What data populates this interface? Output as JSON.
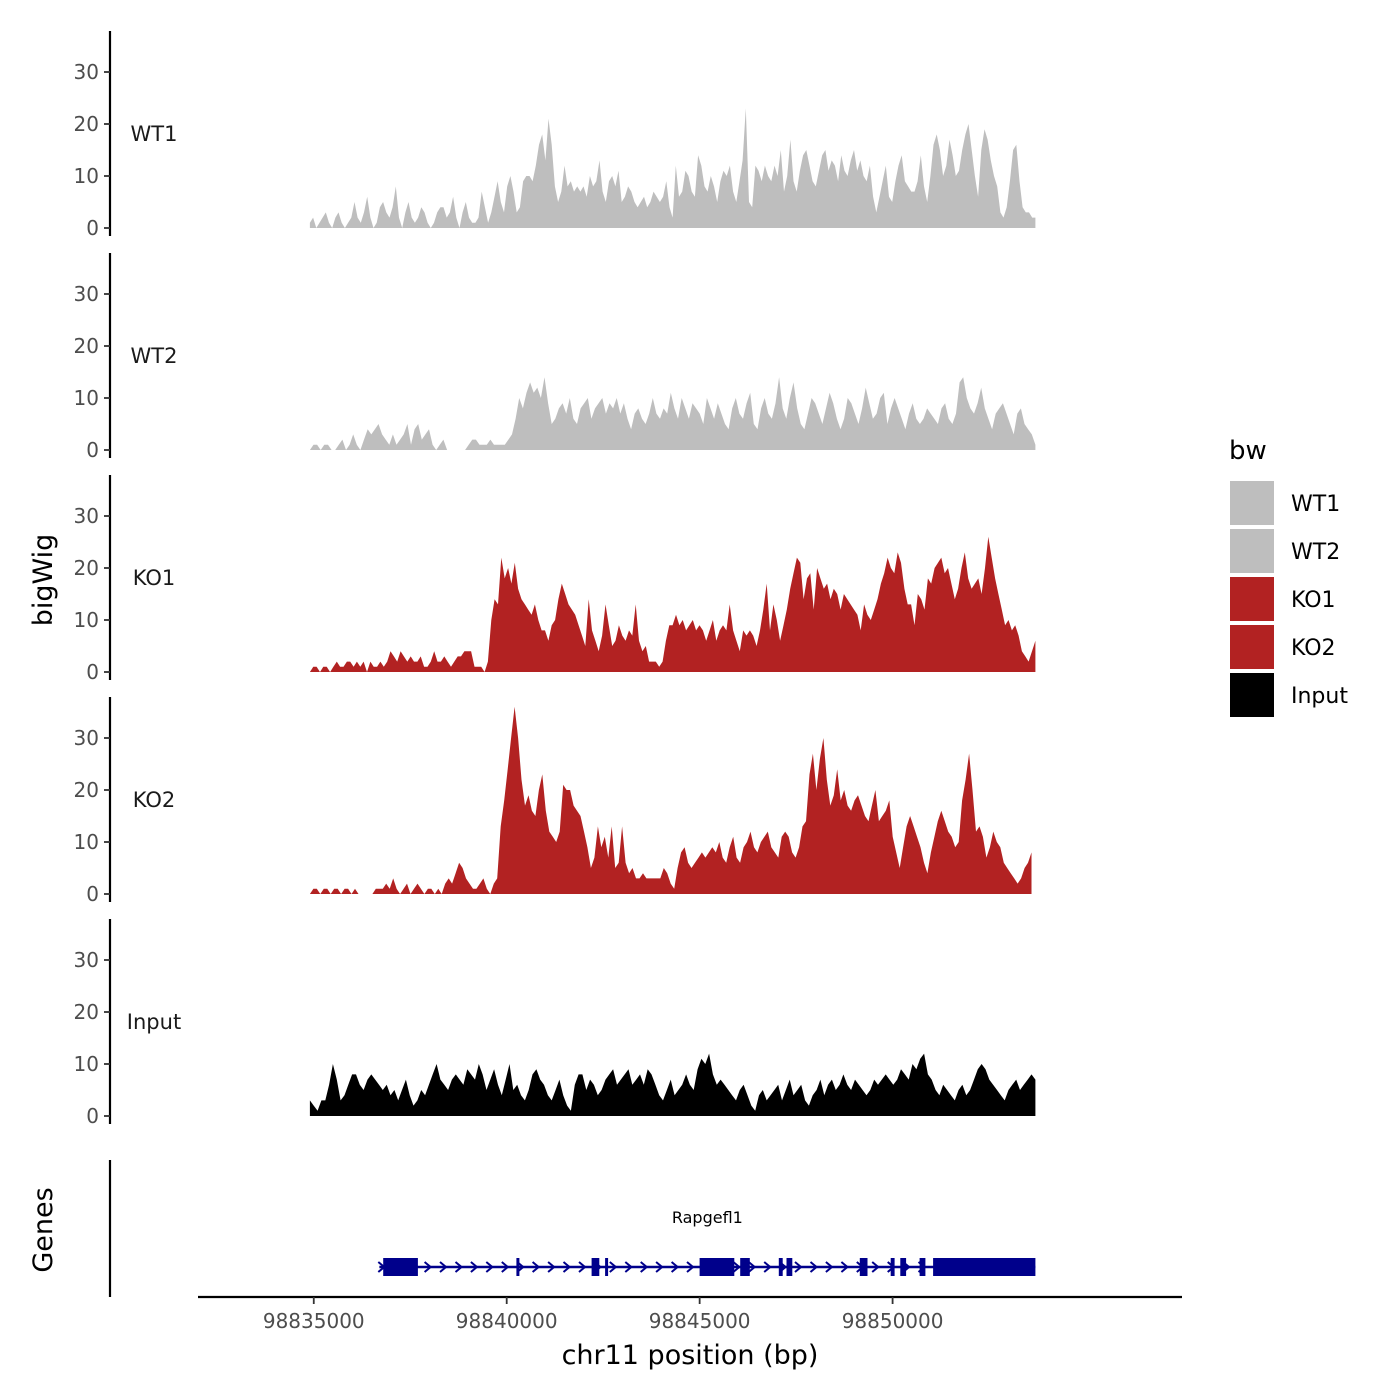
{
  "chart_data": {
    "type": "area",
    "chromosome": "chr11",
    "xlabel": "chr11 position (bp)",
    "ylabel": "bigWig",
    "genes_axis_label": "Genes",
    "xlim": [
      98832000,
      98857500
    ],
    "ylim": [
      0,
      38
    ],
    "x_ticks": [
      98835000,
      98840000,
      98845000,
      98850000
    ],
    "x_tick_labels": [
      "98835000",
      "98840000",
      "98845000",
      "98850000"
    ],
    "y_ticks": [
      0,
      10,
      20,
      30
    ],
    "y_tick_labels": [
      "0",
      "10",
      "20",
      "30"
    ],
    "legend": {
      "title": "bw",
      "entries": [
        {
          "label": "WT1",
          "color": "#bebebe"
        },
        {
          "label": "WT2",
          "color": "#bebebe"
        },
        {
          "label": "KO1",
          "color": "#b22222"
        },
        {
          "label": "KO2",
          "color": "#b22222"
        },
        {
          "label": "Input",
          "color": "#000000"
        }
      ]
    },
    "series": [
      {
        "name": "WT1",
        "color": "#bebebe",
        "x_start": 98834900,
        "x_end": 98853700,
        "values": [
          1,
          2,
          0,
          1,
          2,
          3,
          1,
          0,
          2,
          3,
          1,
          0,
          1,
          2,
          5,
          2,
          1,
          3,
          6,
          2,
          0,
          1,
          4,
          5,
          3,
          2,
          4,
          8,
          2,
          0,
          3,
          5,
          2,
          1,
          2,
          4,
          3,
          1,
          0,
          1,
          3,
          4,
          4,
          2,
          3,
          6,
          2,
          0,
          3,
          5,
          2,
          1,
          1,
          2,
          7,
          4,
          1,
          3,
          6,
          9,
          5,
          3,
          8,
          10,
          7,
          3,
          4,
          9,
          10,
          10,
          9,
          12,
          16,
          18,
          13,
          21,
          16,
          8,
          5,
          7,
          12,
          8,
          9,
          7,
          8,
          7,
          8,
          6,
          10,
          8,
          9,
          13,
          7,
          5,
          9,
          10,
          8,
          11,
          5,
          6,
          8,
          7,
          5,
          4,
          5,
          6,
          4,
          5,
          7,
          6,
          5,
          6,
          9,
          4,
          2,
          12,
          6,
          7,
          11,
          10,
          7,
          6,
          14,
          12,
          8,
          7,
          10,
          8,
          5,
          9,
          11,
          10,
          12,
          7,
          5,
          9,
          13,
          23,
          5,
          4,
          12,
          11,
          9,
          12,
          10,
          9,
          12,
          10,
          15,
          7,
          10,
          17,
          9,
          7,
          11,
          14,
          15,
          12,
          9,
          8,
          11,
          14,
          15,
          11,
          13,
          12,
          9,
          14,
          11,
          10,
          13,
          15,
          11,
          13,
          10,
          9,
          12,
          6,
          3,
          6,
          9,
          12,
          6,
          5,
          9,
          12,
          14,
          9,
          8,
          7,
          7,
          9,
          14,
          8,
          5,
          10,
          16,
          18,
          15,
          10,
          12,
          17,
          14,
          10,
          11,
          15,
          18,
          20,
          15,
          10,
          6,
          15,
          19,
          17,
          13,
          10,
          8,
          3,
          2,
          4,
          9,
          15,
          16,
          9,
          4,
          3,
          3,
          2,
          2
        ]
      },
      {
        "name": "WT2",
        "color": "#bebebe",
        "x_start": 98834900,
        "x_end": 98853700,
        "values": [
          0,
          1,
          1,
          0,
          1,
          1,
          0,
          0,
          1,
          2,
          0,
          1,
          3,
          1,
          0,
          2,
          4,
          3,
          4,
          5,
          3,
          2,
          1,
          3,
          1,
          2,
          3,
          5,
          1,
          4,
          5,
          2,
          3,
          4,
          1,
          0,
          1,
          2,
          0,
          null,
          null,
          null,
          null,
          0,
          1,
          2,
          2,
          1,
          1,
          1,
          2,
          1,
          1,
          1,
          1,
          2,
          3,
          6,
          10,
          8,
          11,
          13,
          11,
          12,
          10,
          14,
          9,
          5,
          6,
          8,
          9,
          7,
          10,
          6,
          5,
          8,
          9,
          10,
          6,
          8,
          9,
          10,
          7,
          9,
          8,
          10,
          7,
          9,
          6,
          4,
          7,
          8,
          6,
          5,
          7,
          10,
          7,
          6,
          8,
          7,
          11,
          8,
          6,
          10,
          8,
          6,
          9,
          8,
          7,
          5,
          10,
          8,
          6,
          9,
          7,
          5,
          4,
          8,
          10,
          7,
          6,
          9,
          11,
          5,
          4,
          8,
          10,
          7,
          6,
          9,
          14,
          8,
          6,
          10,
          13,
          8,
          5,
          4,
          7,
          10,
          9,
          7,
          5,
          8,
          11,
          9,
          6,
          4,
          6,
          10,
          9,
          7,
          5,
          8,
          12,
          9,
          6,
          7,
          10,
          11,
          5,
          8,
          10,
          8,
          6,
          4,
          7,
          9,
          6,
          5,
          6,
          8,
          7,
          6,
          5,
          8,
          9,
          6,
          5,
          7,
          13,
          14,
          10,
          8,
          7,
          9,
          12,
          8,
          6,
          4,
          7,
          8,
          9,
          7,
          5,
          3,
          7,
          8,
          5,
          4,
          3,
          1
        ]
      },
      {
        "name": "KO1",
        "color": "#b22222",
        "x_start": 98834900,
        "x_end": 98853700,
        "values": [
          0,
          1,
          1,
          0,
          1,
          1,
          0,
          1,
          2,
          1,
          1,
          2,
          2,
          1,
          2,
          1,
          2,
          0,
          2,
          1,
          1,
          2,
          1,
          2,
          4,
          3,
          2,
          4,
          3,
          2,
          3,
          2,
          2,
          3,
          1,
          1,
          2,
          4,
          2,
          2,
          3,
          2,
          1,
          2,
          3,
          3,
          4,
          4,
          4,
          1,
          1,
          1,
          0,
          2,
          10,
          14,
          13,
          22,
          18,
          20,
          17,
          21,
          16,
          14,
          13,
          12,
          11,
          13,
          10,
          8,
          8,
          6,
          9,
          10,
          14,
          17,
          15,
          13,
          12,
          11,
          9,
          7,
          5,
          14,
          8,
          6,
          4,
          7,
          13,
          9,
          5,
          6,
          9,
          7,
          6,
          8,
          7,
          13,
          6,
          4,
          5,
          2,
          2,
          2,
          1,
          2,
          6,
          9,
          9,
          11,
          9,
          10,
          8,
          9,
          10,
          8,
          9,
          8,
          6,
          8,
          10,
          6,
          8,
          9,
          8,
          13,
          8,
          6,
          4,
          8,
          7,
          8,
          7,
          5,
          8,
          12,
          17,
          8,
          13,
          10,
          6,
          9,
          12,
          16,
          19,
          22,
          21,
          14,
          18,
          19,
          12,
          20,
          18,
          16,
          17,
          14,
          16,
          15,
          12,
          15,
          14,
          13,
          12,
          11,
          8,
          13,
          11,
          10,
          12,
          14,
          17,
          19,
          22,
          20,
          19,
          23,
          21,
          16,
          13,
          13,
          9,
          15,
          14,
          12,
          18,
          17,
          20,
          21,
          22,
          19,
          20,
          17,
          14,
          16,
          20,
          23,
          18,
          16,
          17,
          18,
          15,
          20,
          26,
          22,
          18,
          15,
          12,
          9,
          10,
          8,
          9,
          7,
          4,
          3,
          2,
          4,
          6
        ]
      },
      {
        "name": "KO2",
        "color": "#b22222",
        "x_start": 98834900,
        "x_end": 98853600,
        "values": [
          0,
          1,
          1,
          0,
          1,
          1,
          0,
          1,
          1,
          0,
          1,
          1,
          0,
          1,
          0,
          0,
          0,
          0,
          0,
          1,
          1,
          1,
          2,
          1,
          3,
          1,
          0,
          1,
          2,
          0,
          1,
          2,
          1,
          0,
          1,
          1,
          0,
          1,
          0,
          2,
          3,
          2,
          4,
          6,
          5,
          3,
          2,
          1,
          1,
          2,
          3,
          1,
          0,
          2,
          3,
          13,
          18,
          24,
          30,
          36,
          30,
          22,
          17,
          19,
          16,
          15,
          20,
          23,
          16,
          12,
          11,
          10,
          12,
          21,
          20,
          20,
          17,
          16,
          15,
          12,
          9,
          5,
          7,
          13,
          9,
          11,
          7,
          13,
          5,
          6,
          13,
          6,
          4,
          5,
          3,
          3,
          4,
          3,
          3,
          3,
          3,
          3,
          5,
          4,
          2,
          1,
          5,
          8,
          9,
          6,
          5,
          6,
          7,
          8,
          7,
          8,
          9,
          8,
          10,
          7,
          6,
          9,
          11,
          7,
          6,
          9,
          10,
          12,
          9,
          8,
          10,
          11,
          12,
          9,
          8,
          7,
          11,
          12,
          11,
          8,
          7,
          9,
          13,
          14,
          23,
          27,
          20,
          26,
          30,
          22,
          17,
          19,
          24,
          18,
          20,
          17,
          16,
          18,
          19,
          17,
          15,
          14,
          17,
          20,
          14,
          15,
          16,
          18,
          11,
          8,
          5,
          9,
          13,
          15,
          13,
          11,
          9,
          6,
          4,
          8,
          11,
          14,
          16,
          14,
          12,
          11,
          9,
          10,
          18,
          22,
          27,
          20,
          12,
          13,
          11,
          7,
          9,
          12,
          10,
          9,
          6,
          5,
          4,
          3,
          2,
          3,
          5,
          6,
          8
        ]
      },
      {
        "name": "Input",
        "color": "#000000",
        "x_start": 98834900,
        "x_end": 98853700,
        "values": [
          3,
          2,
          1,
          3,
          3,
          6,
          10,
          7,
          3,
          4,
          6,
          8,
          8,
          6,
          5,
          7,
          8,
          7,
          6,
          5,
          6,
          4,
          5,
          3,
          5,
          7,
          4,
          2,
          3,
          5,
          4,
          6,
          8,
          10,
          7,
          6,
          5,
          7,
          8,
          7,
          6,
          9,
          8,
          7,
          10,
          8,
          5,
          7,
          9,
          6,
          4,
          7,
          10,
          5,
          6,
          4,
          3,
          5,
          8,
          9,
          7,
          6,
          4,
          3,
          5,
          7,
          4,
          2,
          1,
          6,
          8,
          8,
          5,
          7,
          6,
          4,
          5,
          7,
          8,
          9,
          6,
          7,
          8,
          9,
          6,
          7,
          8,
          6,
          9,
          8,
          6,
          4,
          3,
          5,
          7,
          4,
          5,
          6,
          8,
          6,
          5,
          9,
          11,
          10,
          12,
          8,
          6,
          7,
          6,
          5,
          4,
          3,
          5,
          6,
          4,
          2,
          1,
          4,
          5,
          3,
          4,
          5,
          6,
          3,
          5,
          7,
          4,
          5,
          6,
          3,
          2,
          4,
          5,
          7,
          4,
          6,
          7,
          5,
          6,
          8,
          6,
          5,
          7,
          6,
          5,
          4,
          5,
          7,
          6,
          7,
          8,
          7,
          6,
          7,
          9,
          8,
          7,
          10,
          9,
          11,
          12,
          8,
          7,
          5,
          4,
          6,
          5,
          4,
          3,
          5,
          6,
          4,
          5,
          7,
          9,
          10,
          9,
          7,
          6,
          5,
          4,
          3,
          5,
          6,
          7,
          5,
          6,
          7,
          8,
          7
        ]
      }
    ],
    "genes": [
      {
        "name": "Rapgefl1",
        "start": 98836700,
        "end": 98853700,
        "strand": "+",
        "exons": [
          [
            98836800,
            98837700
          ],
          [
            98840250,
            98840310
          ],
          [
            98842200,
            98842400
          ],
          [
            98842550,
            98842620
          ],
          [
            98845000,
            98845900
          ],
          [
            98846050,
            98846300
          ],
          [
            98847050,
            98847150
          ],
          [
            98847250,
            98847400
          ],
          [
            98849150,
            98849350
          ],
          [
            98849950,
            98850050
          ],
          [
            98850200,
            98850350
          ],
          [
            98850700,
            98850850
          ],
          [
            98851050,
            98852900
          ],
          [
            98852900,
            98853700
          ]
        ]
      }
    ]
  }
}
